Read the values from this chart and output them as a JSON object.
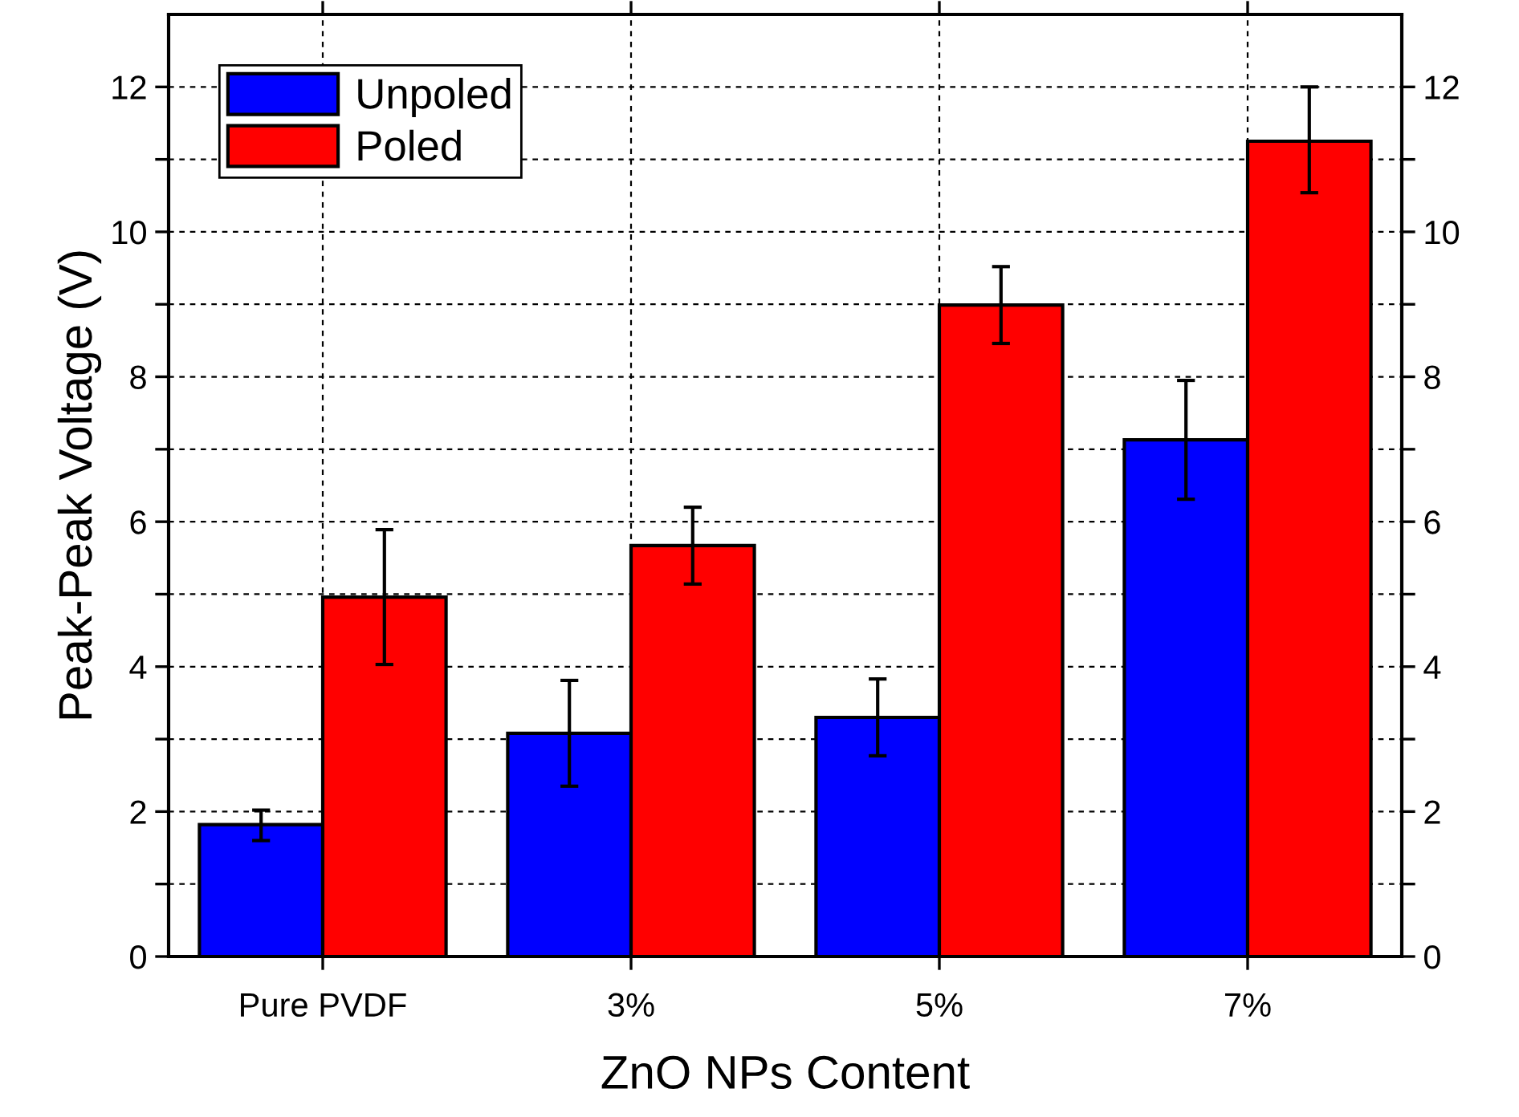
{
  "chart_data": {
    "type": "bar",
    "xlabel": "ZnO NPs Content",
    "ylabel": "Peak-Peak Voltage (V)",
    "categories": [
      "Pure PVDF",
      "3%",
      "5%",
      "7%"
    ],
    "series": [
      {
        "name": "Unpoled",
        "color": "#0000ff",
        "values": [
          1.82,
          3.08,
          3.3,
          7.13
        ],
        "errors": [
          [
            1.6,
            2.02
          ],
          [
            2.35,
            3.81
          ],
          [
            2.77,
            3.83
          ],
          [
            6.31,
            7.95
          ]
        ]
      },
      {
        "name": "Poled",
        "color": "#ff0000",
        "values": [
          4.96,
          5.67,
          8.99,
          11.25
        ],
        "errors": [
          [
            4.03,
            5.89
          ],
          [
            5.14,
            6.2
          ],
          [
            8.46,
            9.52
          ],
          [
            10.54,
            12.0
          ]
        ]
      }
    ],
    "ylim": [
      0,
      13
    ],
    "yticks": [
      0,
      {
        "value": 1,
        "label": null
      },
      2,
      {
        "value": 3,
        "label": null
      },
      4,
      {
        "value": 5,
        "label": null
      },
      6,
      {
        "value": 7,
        "label": null
      },
      8,
      {
        "value": 9,
        "label": null
      },
      10,
      {
        "value": 11,
        "label": null
      },
      12
    ],
    "y2lim": [
      0,
      13
    ],
    "y2ticks": [
      0,
      {
        "value": 1,
        "label": null
      },
      2,
      {
        "value": 3,
        "label": null
      },
      4,
      {
        "value": 5,
        "label": null
      },
      6,
      {
        "value": 7,
        "label": null
      },
      8,
      {
        "value": 9,
        "label": null
      },
      10,
      {
        "value": 11,
        "label": null
      },
      12
    ],
    "grid": true,
    "legend": "top left"
  }
}
